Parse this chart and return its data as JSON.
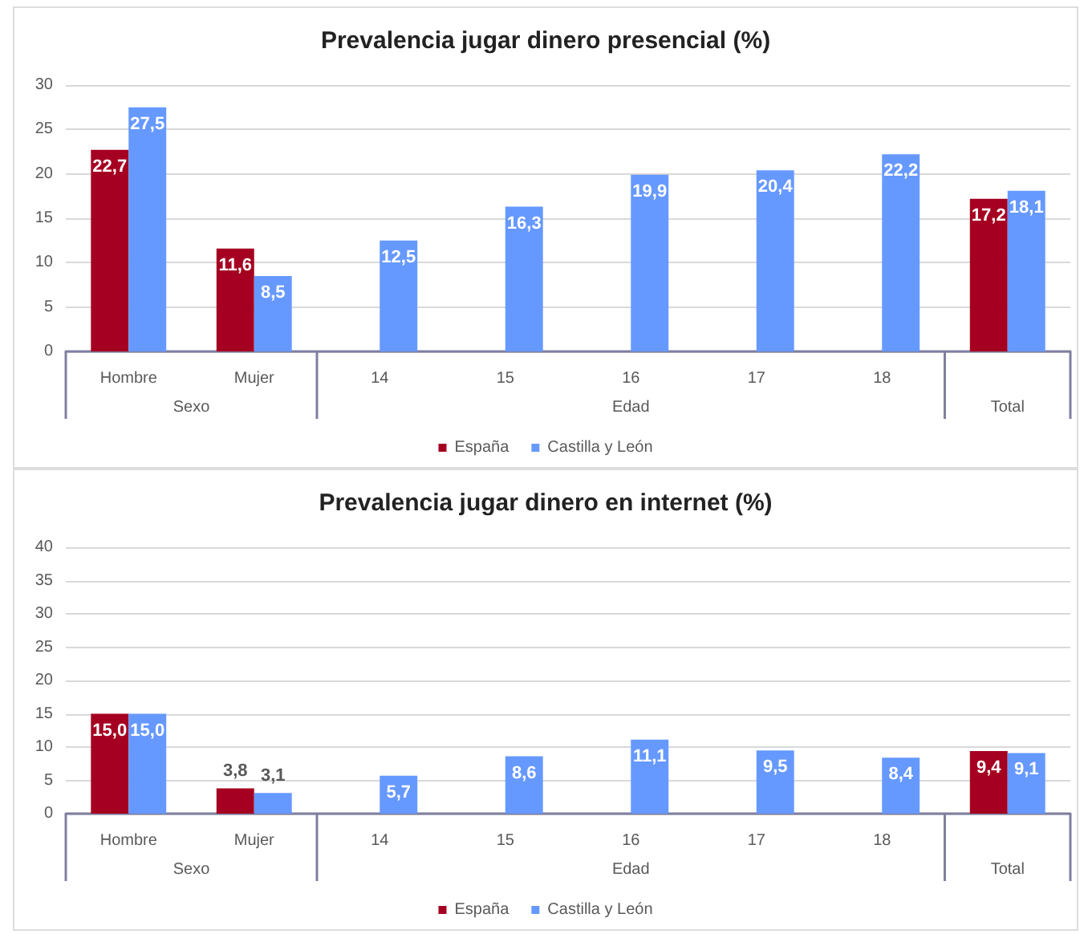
{
  "chart_data": [
    {
      "type": "bar",
      "title": "Prevalencia jugar dinero presencial (%)",
      "categories": [
        "Hombre",
        "Mujer",
        "14",
        "15",
        "16",
        "17",
        "18",
        null
      ],
      "series": [
        {
          "name": "España",
          "color": "#a50021",
          "values": [
            22.7,
            11.6,
            null,
            null,
            null,
            null,
            null,
            17.2
          ],
          "value_labels": [
            "22,7",
            "11,6",
            null,
            null,
            null,
            null,
            null,
            "17,2"
          ]
        },
        {
          "name": "Castilla y León",
          "color": "#6699ff",
          "values": [
            27.5,
            8.5,
            12.5,
            16.3,
            19.9,
            20.4,
            22.2,
            18.1
          ],
          "value_labels": [
            "27,5",
            "8,5",
            "12,5",
            "16,3",
            "19,9",
            "20,4",
            "22,2",
            "18,1"
          ]
        }
      ],
      "ylim": [
        0,
        30
      ],
      "yticks": [
        0,
        5,
        10,
        15,
        20,
        25,
        30
      ],
      "grid": "y",
      "legend": "bottom",
      "annotations": [
        "Sexo",
        "Edad",
        "Total"
      ]
    },
    {
      "type": "bar",
      "title": "Prevalencia jugar dinero en internet (%)",
      "categories": [
        "Hombre",
        "Mujer",
        "14",
        "15",
        "16",
        "17",
        "18",
        null
      ],
      "series": [
        {
          "name": "España",
          "color": "#a50021",
          "values": [
            15.0,
            3.8,
            null,
            null,
            null,
            null,
            null,
            9.4
          ],
          "value_labels": [
            "15,0",
            "3,8",
            null,
            null,
            null,
            null,
            null,
            "9,4"
          ]
        },
        {
          "name": "Castilla y León",
          "color": "#6699ff",
          "values": [
            15.0,
            3.1,
            5.7,
            8.6,
            11.1,
            9.5,
            8.4,
            9.1
          ],
          "value_labels": [
            "15,0",
            "3,1",
            "5,7",
            "8,6",
            "11,1",
            "9,5",
            "8,4",
            "9,1"
          ]
        }
      ],
      "ylim": [
        0,
        40
      ],
      "yticks": [
        0,
        5,
        10,
        15,
        20,
        25,
        30,
        35,
        40
      ],
      "grid": "y",
      "legend": "bottom",
      "annotations": [
        "Sexo",
        "Edad",
        "Total"
      ]
    }
  ]
}
